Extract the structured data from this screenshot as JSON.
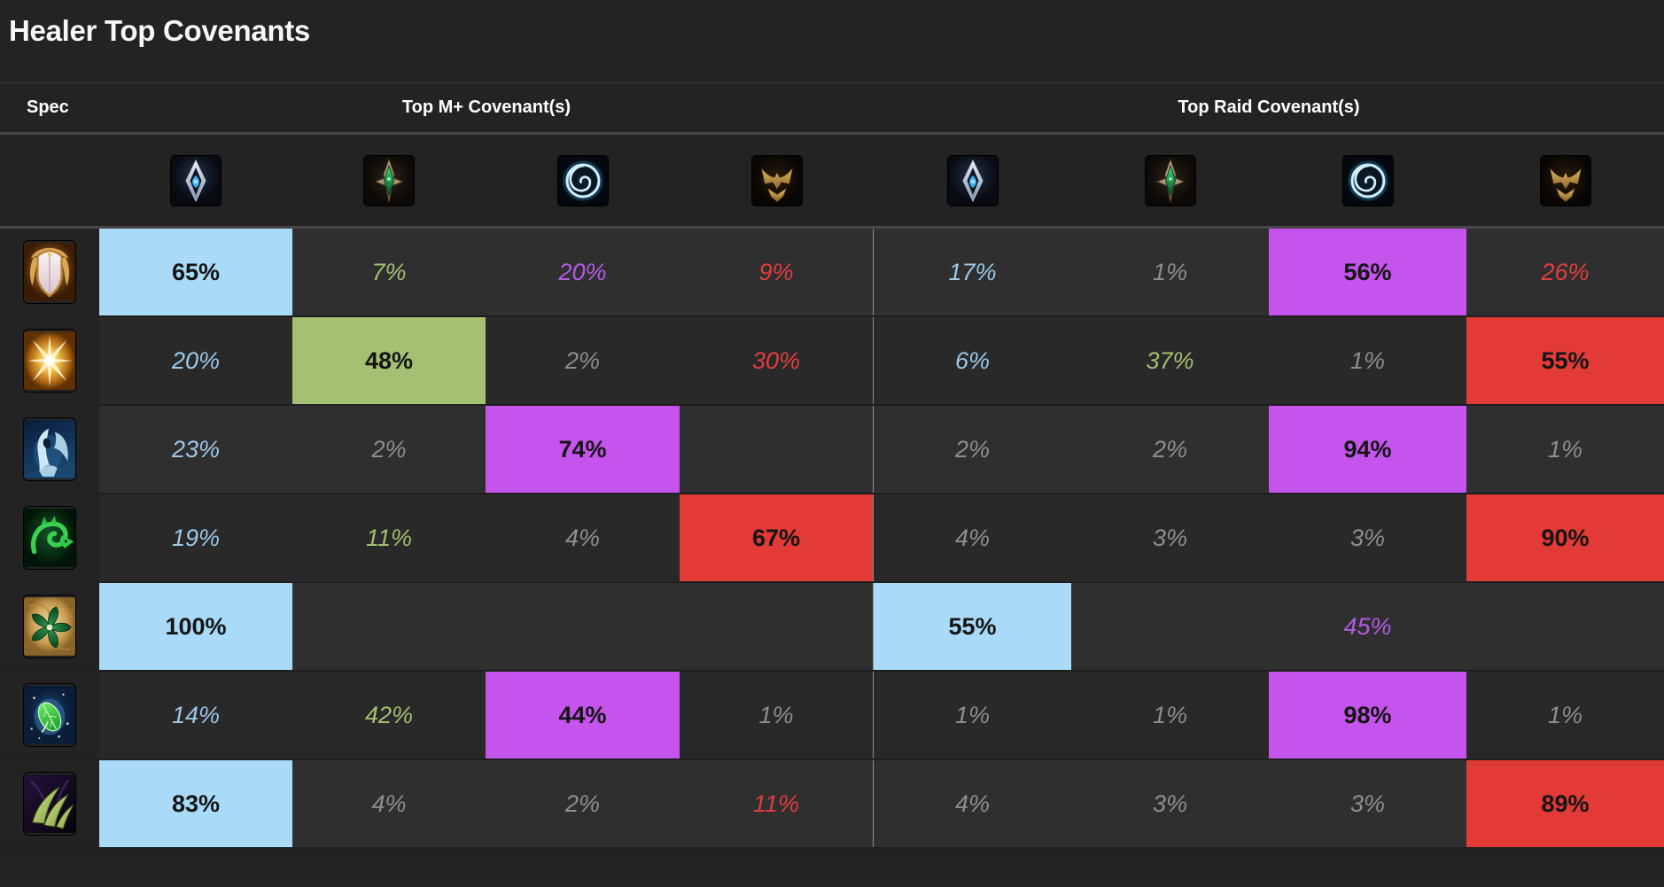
{
  "title": "Healer Top Covenants",
  "header": {
    "spec_label": "Spec",
    "mplus_label": "Top M+ Covenant(s)",
    "raid_label": "Top Raid Covenant(s)"
  },
  "covenant_columns": {
    "mplus": [
      "kyrian-icon",
      "necrolord-icon",
      "night-fae-icon",
      "venthyr-icon"
    ],
    "raid": [
      "kyrian-icon",
      "necrolord-icon",
      "night-fae-icon",
      "venthyr-icon"
    ]
  },
  "palette": {
    "kyrian_blue": "#a9daf7",
    "necrolord_green": "#a4c073",
    "night_fae_purple": "#c554ec",
    "venthyr_red": "#e23a36",
    "text_blue": "#9cc8e8",
    "text_green": "#a3bf72",
    "text_purple": "#b35ae2",
    "text_red": "#e23d3d",
    "text_gray": "#8e8e8e",
    "highlight_text": "#151515"
  },
  "rows": [
    {
      "spec_icon": "winged-shield-spec-icon",
      "cells": [
        {
          "value": "65%",
          "tone": "blue",
          "highlight": true
        },
        {
          "value": "7%",
          "tone": "green",
          "highlight": false
        },
        {
          "value": "20%",
          "tone": "purple",
          "highlight": false
        },
        {
          "value": "9%",
          "tone": "red",
          "highlight": false
        },
        {
          "value": "17%",
          "tone": "blue",
          "highlight": false
        },
        {
          "value": "1%",
          "tone": "gray",
          "highlight": false
        },
        {
          "value": "56%",
          "tone": "purple",
          "highlight": true
        },
        {
          "value": "26%",
          "tone": "red",
          "highlight": false
        }
      ]
    },
    {
      "spec_icon": "holy-burst-spec-icon",
      "cells": [
        {
          "value": "20%",
          "tone": "blue",
          "highlight": false
        },
        {
          "value": "48%",
          "tone": "green",
          "highlight": true
        },
        {
          "value": "2%",
          "tone": "gray",
          "highlight": false
        },
        {
          "value": "30%",
          "tone": "red",
          "highlight": false
        },
        {
          "value": "6%",
          "tone": "blue",
          "highlight": false
        },
        {
          "value": "37%",
          "tone": "green",
          "highlight": false
        },
        {
          "value": "1%",
          "tone": "gray",
          "highlight": false
        },
        {
          "value": "55%",
          "tone": "red",
          "highlight": true
        }
      ]
    },
    {
      "spec_icon": "blue-spirit-spec-icon",
      "cells": [
        {
          "value": "23%",
          "tone": "blue",
          "highlight": false
        },
        {
          "value": "2%",
          "tone": "gray",
          "highlight": false
        },
        {
          "value": "74%",
          "tone": "purple",
          "highlight": true
        },
        {
          "value": "",
          "tone": null,
          "highlight": false
        },
        {
          "value": "2%",
          "tone": "gray",
          "highlight": false
        },
        {
          "value": "2%",
          "tone": "gray",
          "highlight": false
        },
        {
          "value": "94%",
          "tone": "purple",
          "highlight": true
        },
        {
          "value": "1%",
          "tone": "gray",
          "highlight": false
        }
      ]
    },
    {
      "spec_icon": "jade-serpent-spec-icon",
      "cells": [
        {
          "value": "19%",
          "tone": "blue",
          "highlight": false
        },
        {
          "value": "11%",
          "tone": "green",
          "highlight": false
        },
        {
          "value": "4%",
          "tone": "gray",
          "highlight": false
        },
        {
          "value": "67%",
          "tone": "red",
          "highlight": true
        },
        {
          "value": "4%",
          "tone": "gray",
          "highlight": false
        },
        {
          "value": "3%",
          "tone": "gray",
          "highlight": false
        },
        {
          "value": "3%",
          "tone": "gray",
          "highlight": false
        },
        {
          "value": "90%",
          "tone": "red",
          "highlight": true
        }
      ]
    },
    {
      "spec_icon": "green-flower-spec-icon",
      "cells": [
        {
          "value": "100%",
          "tone": "blue",
          "highlight": true
        },
        {
          "value": "",
          "tone": null,
          "highlight": false
        },
        {
          "value": "",
          "tone": null,
          "highlight": false
        },
        {
          "value": "",
          "tone": null,
          "highlight": false
        },
        {
          "value": "55%",
          "tone": "blue",
          "highlight": true
        },
        {
          "value": "",
          "tone": null,
          "highlight": false
        },
        {
          "value": "45%",
          "tone": "purple",
          "highlight": false
        },
        {
          "value": "",
          "tone": null,
          "highlight": false
        }
      ]
    },
    {
      "spec_icon": "green-leaf-spec-icon",
      "cells": [
        {
          "value": "14%",
          "tone": "blue",
          "highlight": false
        },
        {
          "value": "42%",
          "tone": "green",
          "highlight": false
        },
        {
          "value": "44%",
          "tone": "purple",
          "highlight": true
        },
        {
          "value": "1%",
          "tone": "gray",
          "highlight": false
        },
        {
          "value": "1%",
          "tone": "gray",
          "highlight": false
        },
        {
          "value": "1%",
          "tone": "gray",
          "highlight": false
        },
        {
          "value": "98%",
          "tone": "purple",
          "highlight": true
        },
        {
          "value": "1%",
          "tone": "gray",
          "highlight": false
        }
      ]
    },
    {
      "spec_icon": "green-claw-spec-icon",
      "cells": [
        {
          "value": "83%",
          "tone": "blue",
          "highlight": true
        },
        {
          "value": "4%",
          "tone": "gray",
          "highlight": false
        },
        {
          "value": "2%",
          "tone": "gray",
          "highlight": false
        },
        {
          "value": "11%",
          "tone": "red",
          "highlight": false
        },
        {
          "value": "4%",
          "tone": "gray",
          "highlight": false
        },
        {
          "value": "3%",
          "tone": "gray",
          "highlight": false
        },
        {
          "value": "3%",
          "tone": "gray",
          "highlight": false
        },
        {
          "value": "89%",
          "tone": "red",
          "highlight": true
        }
      ]
    }
  ]
}
